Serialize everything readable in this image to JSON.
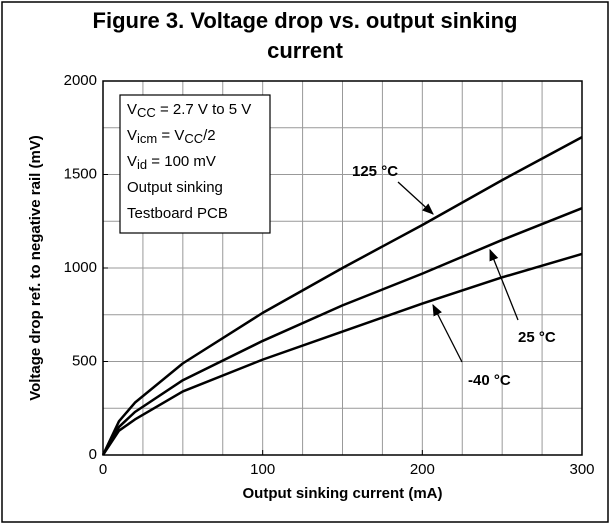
{
  "chart_data": {
    "type": "line",
    "title": [
      "Figure 3. Voltage drop vs. output sinking",
      "current"
    ],
    "x_label": "Output  sinking  current (mA)",
    "y_label": "Voltage drop ref. to negative rail (mV)",
    "x": [
      0,
      10,
      20,
      50,
      100,
      150,
      200,
      250,
      300
    ],
    "series": [
      {
        "name": "125 °C",
        "color": "#000000",
        "values": [
          0,
          180,
          280,
          490,
          760,
          1000,
          1230,
          1470,
          1700
        ]
      },
      {
        "name": "25 °C",
        "color": "#000000",
        "values": [
          0,
          150,
          230,
          400,
          610,
          800,
          970,
          1150,
          1320
        ]
      },
      {
        "name": "-40 °C",
        "color": "#000000",
        "values": [
          0,
          130,
          190,
          340,
          510,
          660,
          810,
          950,
          1075
        ]
      }
    ],
    "xlim": [
      0,
      300
    ],
    "xticks": [
      0,
      100,
      200,
      300
    ],
    "ylim": [
      0,
      2000
    ],
    "yticks": [
      0,
      500,
      1000,
      1500,
      2000
    ],
    "grid": true,
    "xgrid_step": 25,
    "ygrid_step": 250,
    "note_lines": [
      [
        "V",
        "CC",
        " = 2.7 V to 5 V"
      ],
      [
        "V",
        "icm",
        " = V",
        "CC",
        "/2"
      ],
      [
        "V",
        "id",
        " = 100 mV"
      ],
      [
        "Output sinking"
      ],
      [
        "Testboard PCB"
      ]
    ]
  }
}
